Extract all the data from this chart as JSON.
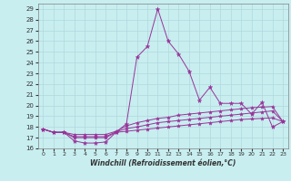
{
  "background_color": "#c8eef0",
  "grid_color": "#b0d8dc",
  "line_color": "#993399",
  "xlim": [
    -0.5,
    23.5
  ],
  "ylim": [
    16,
    29.5
  ],
  "yticks": [
    16,
    17,
    18,
    19,
    20,
    21,
    22,
    23,
    24,
    25,
    26,
    27,
    28,
    29
  ],
  "xticks": [
    0,
    1,
    2,
    3,
    4,
    5,
    6,
    7,
    8,
    9,
    10,
    11,
    12,
    13,
    14,
    15,
    16,
    17,
    18,
    19,
    20,
    21,
    22,
    23
  ],
  "xlabel": "Windchill (Refroidissement éolien,°C)",
  "line1_x": [
    0,
    1,
    2,
    3,
    4,
    5,
    6,
    7,
    8,
    9,
    10,
    11,
    12,
    13,
    14,
    15,
    16,
    17,
    18,
    19,
    20,
    21,
    22,
    23
  ],
  "line1_y": [
    17.8,
    17.5,
    17.5,
    16.7,
    16.5,
    16.5,
    16.6,
    17.5,
    18.3,
    24.5,
    25.5,
    29.0,
    26.0,
    24.8,
    23.2,
    20.5,
    21.7,
    20.2,
    20.2,
    20.2,
    19.2,
    20.3,
    18.0,
    18.5
  ],
  "line2_x": [
    0,
    1,
    2,
    3,
    4,
    5,
    6,
    7,
    8,
    9,
    10,
    11,
    12,
    13,
    14,
    15,
    16,
    17,
    18,
    19,
    20,
    21,
    22,
    23
  ],
  "line2_y": [
    17.8,
    17.5,
    17.5,
    17.3,
    17.3,
    17.3,
    17.3,
    17.6,
    18.1,
    18.4,
    18.6,
    18.8,
    18.9,
    19.1,
    19.2,
    19.3,
    19.4,
    19.5,
    19.6,
    19.7,
    19.8,
    19.85,
    19.9,
    18.5
  ],
  "line3_x": [
    0,
    1,
    2,
    3,
    4,
    5,
    6,
    7,
    8,
    9,
    10,
    11,
    12,
    13,
    14,
    15,
    16,
    17,
    18,
    19,
    20,
    21,
    22,
    23
  ],
  "line3_y": [
    17.8,
    17.5,
    17.5,
    17.1,
    17.1,
    17.1,
    17.1,
    17.55,
    17.85,
    18.0,
    18.2,
    18.4,
    18.5,
    18.6,
    18.7,
    18.8,
    18.9,
    19.0,
    19.1,
    19.2,
    19.3,
    19.4,
    19.5,
    18.5
  ],
  "line4_x": [
    0,
    1,
    2,
    3,
    4,
    5,
    6,
    7,
    8,
    9,
    10,
    11,
    12,
    13,
    14,
    15,
    16,
    17,
    18,
    19,
    20,
    21,
    22,
    23
  ],
  "line4_y": [
    17.8,
    17.5,
    17.5,
    17.0,
    17.0,
    17.0,
    17.0,
    17.5,
    17.6,
    17.7,
    17.8,
    17.9,
    18.0,
    18.1,
    18.2,
    18.3,
    18.4,
    18.5,
    18.6,
    18.7,
    18.75,
    18.8,
    18.85,
    18.5
  ]
}
